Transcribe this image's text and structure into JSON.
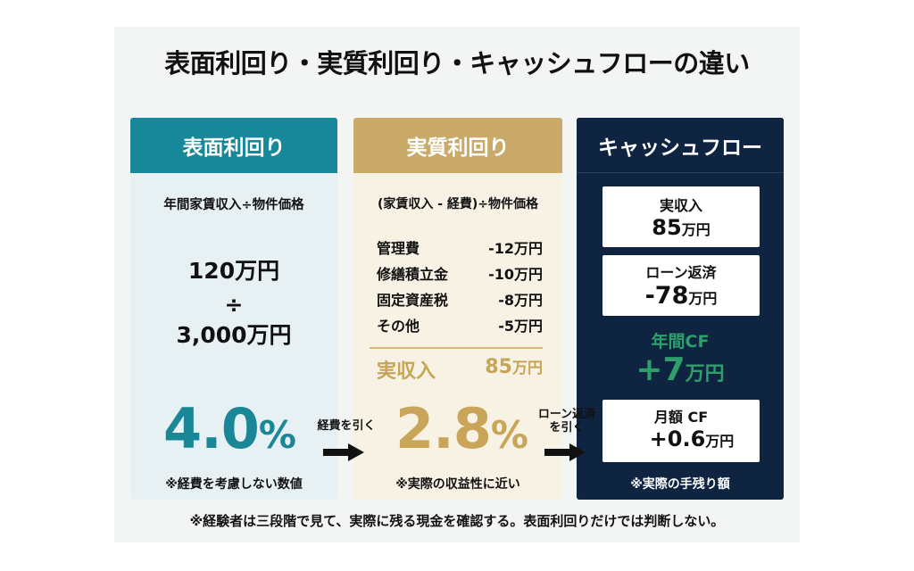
{
  "title": "表面利回り・実質利回り・キャッシュフローの違い",
  "colors": {
    "teal": "#16889a",
    "gold": "#c9aa68",
    "navy": "#0e2440",
    "green": "#2e9e6a"
  },
  "surface": {
    "header": "表面利回り",
    "formula": "年間家賃収入÷物件価格",
    "numerator": "120万円",
    "operator": "÷",
    "denominator": "3,000万円",
    "rate": "4.0",
    "pct": "%",
    "note": "※経費を考慮しない数値"
  },
  "arrow1": {
    "label": "経費を引く",
    "icon": "arrow-right-icon"
  },
  "real": {
    "header": "実質利回り",
    "formula": "(家賃収入 - 経費)÷物件価格",
    "expenses": [
      {
        "name": "管理費",
        "amount": "-12万円"
      },
      {
        "name": "修繕積立金",
        "amount": "-10万円"
      },
      {
        "name": "固定資産税",
        "amount": "-8万円"
      },
      {
        "name": "その他",
        "amount": "-5万円"
      }
    ],
    "net_label": "実収入",
    "net_value": "85",
    "net_unit": "万円",
    "rate": "2.8",
    "pct": "%",
    "note": "※実際の収益性に近い"
  },
  "arrow2": {
    "label_line1": "ローン返済",
    "label_line2": "を引く",
    "icon": "arrow-right-icon"
  },
  "cashflow": {
    "header": "キャッシュフロー",
    "income": {
      "label": "実収入",
      "value": "85",
      "unit": "万円"
    },
    "loan": {
      "label": "ローン返済",
      "value": "-78",
      "unit": "万円"
    },
    "annual": {
      "label": "年間CF",
      "value": "+7",
      "unit": "万円"
    },
    "monthly": {
      "label": "月額 CF",
      "value": "+0.6",
      "unit": "万円"
    },
    "note": "※実際の手残り額"
  },
  "footer": "※経験者は三段階で見て、実際に残る現金を確認する。表面利回りだけでは判断しない。"
}
